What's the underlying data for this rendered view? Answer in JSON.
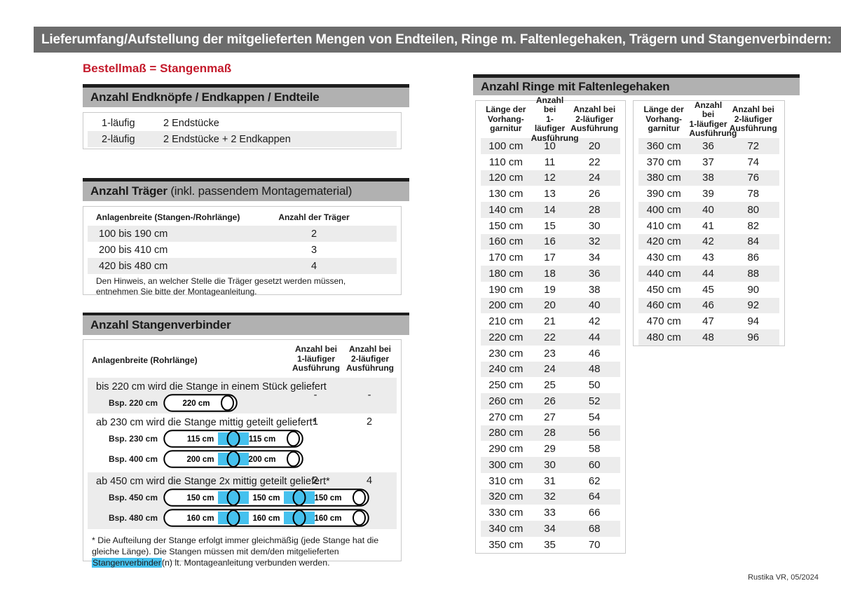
{
  "title": "Lieferumfang/Aufstellung der mitgelieferten Mengen von Endteilen, Ringe m. Faltenlegehaken, Trägern und Stangenverbindern:",
  "subtitle_red": "Bestellmaß = Stangenmaß",
  "colors": {
    "accent_red": "#c41a2b",
    "connector_blue": "#45c1ee",
    "section_header_gray": "#b1b1b1",
    "title_bar_gray": "#6c6c6c",
    "zebra_gray": "#ececec"
  },
  "endteile": {
    "header": "Anzahl Endknöpfe / Endkappen / Endteile",
    "rows": [
      [
        "1-läufig",
        "2 Endstücke"
      ],
      [
        "2-läufig",
        "2 Endstücke + 2 Endkappen"
      ]
    ]
  },
  "traeger": {
    "header_bold": "Anzahl Träger",
    "header_normal": " (inkl. passendem Montagematerial)",
    "col1": "Anlagenbreite (Stangen-/Rohrlänge)",
    "col2": "Anzahl der Träger",
    "rows": [
      [
        "100 bis 190 cm",
        "2"
      ],
      [
        "200 bis 410 cm",
        "3"
      ],
      [
        "420 bis 480 cm",
        "4"
      ]
    ],
    "note": "Den Hinweis, an welcher Stelle die Träger gesetzt werden müssen, entnehmen Sie bitte der Montageanleitung."
  },
  "verbinder": {
    "header": "Anzahl Stangenverbinder",
    "col1": "Anlagenbreite (Rohrlänge)",
    "col2": "Anzahl bei\n1-läufiger\nAusführung",
    "col3": "Anzahl bei\n2-läufiger\nAusführung",
    "rows": [
      {
        "text": "bis 220 cm wird die Stange in einem Stück geliefert",
        "val1": "-",
        "val2": "-",
        "examples": [
          {
            "label": "Bsp. 220 cm",
            "segments": [
              "220 cm"
            ]
          }
        ]
      },
      {
        "text": "ab 230 cm wird die Stange mittig geteilt geliefert*",
        "val1": "1",
        "val2": "2",
        "examples": [
          {
            "label": "Bsp. 230 cm",
            "segments": [
              "115 cm",
              "115 cm"
            ]
          },
          {
            "label": "Bsp. 400 cm",
            "segments": [
              "200 cm",
              "200 cm"
            ]
          }
        ]
      },
      {
        "text": "ab 450 cm wird die Stange 2x mittig geteilt geliefert*",
        "val1": "2",
        "val2": "4",
        "examples": [
          {
            "label": "Bsp. 450 cm",
            "segments": [
              "150 cm",
              "150 cm",
              "150 cm"
            ]
          },
          {
            "label": "Bsp. 480 cm",
            "segments": [
              "160 cm",
              "160 cm",
              "160 cm"
            ]
          }
        ]
      }
    ],
    "footnote_before": "* Die Aufteilung der Stange erfolgt immer gleichmäßig (jede Stange hat die gleiche Länge). Die Stangen müssen mit dem/den mitgelieferten ",
    "footnote_highlight": "Stangenverbinder",
    "footnote_after": "(n) lt. Montageanleitung verbunden werden."
  },
  "rings": {
    "header": "Anzahl Ringe mit Faltenlegehaken",
    "col_headers": [
      "Länge der\nVorhang-\ngarnitur",
      "Anzahl bei\n1-läufiger\nAusführung",
      "Anzahl bei\n2-läufiger\nAusführung"
    ],
    "table_left": [
      [
        "100 cm",
        "10",
        "20"
      ],
      [
        "110 cm",
        "11",
        "22"
      ],
      [
        "120 cm",
        "12",
        "24"
      ],
      [
        "130 cm",
        "13",
        "26"
      ],
      [
        "140 cm",
        "14",
        "28"
      ],
      [
        "150 cm",
        "15",
        "30"
      ],
      [
        "160 cm",
        "16",
        "32"
      ],
      [
        "170 cm",
        "17",
        "34"
      ],
      [
        "180 cm",
        "18",
        "36"
      ],
      [
        "190 cm",
        "19",
        "38"
      ],
      [
        "200 cm",
        "20",
        "40"
      ],
      [
        "210 cm",
        "21",
        "42"
      ],
      [
        "220 cm",
        "22",
        "44"
      ],
      [
        "230 cm",
        "23",
        "46"
      ],
      [
        "240 cm",
        "24",
        "48"
      ],
      [
        "250 cm",
        "25",
        "50"
      ],
      [
        "260 cm",
        "26",
        "52"
      ],
      [
        "270 cm",
        "27",
        "54"
      ],
      [
        "280 cm",
        "28",
        "56"
      ],
      [
        "290 cm",
        "29",
        "58"
      ],
      [
        "300 cm",
        "30",
        "60"
      ],
      [
        "310 cm",
        "31",
        "62"
      ],
      [
        "320 cm",
        "32",
        "64"
      ],
      [
        "330 cm",
        "33",
        "66"
      ],
      [
        "340 cm",
        "34",
        "68"
      ],
      [
        "350 cm",
        "35",
        "70"
      ]
    ],
    "table_right": [
      [
        "360 cm",
        "36",
        "72"
      ],
      [
        "370 cm",
        "37",
        "74"
      ],
      [
        "380 cm",
        "38",
        "76"
      ],
      [
        "390 cm",
        "39",
        "78"
      ],
      [
        "400 cm",
        "40",
        "80"
      ],
      [
        "410 cm",
        "41",
        "82"
      ],
      [
        "420 cm",
        "42",
        "84"
      ],
      [
        "430 cm",
        "43",
        "86"
      ],
      [
        "440 cm",
        "44",
        "88"
      ],
      [
        "450 cm",
        "45",
        "90"
      ],
      [
        "460 cm",
        "46",
        "92"
      ],
      [
        "470 cm",
        "47",
        "94"
      ],
      [
        "480 cm",
        "48",
        "96"
      ]
    ]
  },
  "footer": "Rustika VR, 05/2024"
}
